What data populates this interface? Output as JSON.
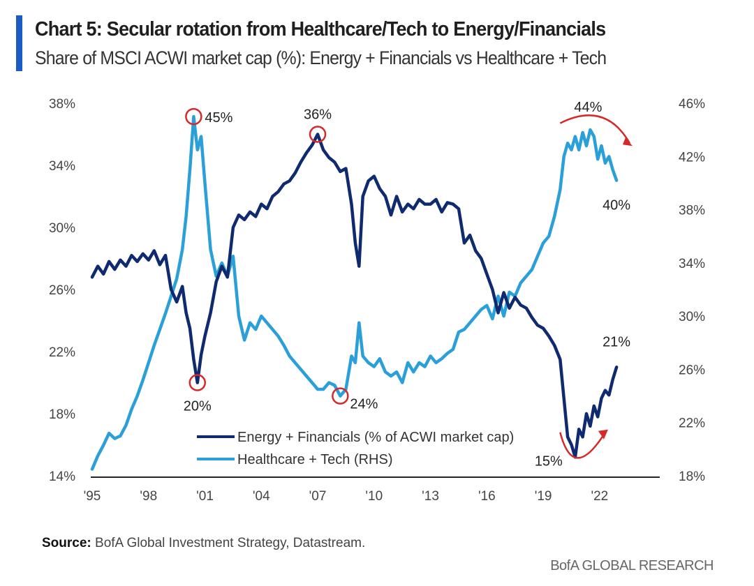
{
  "header": {
    "title": "Chart 5: Secular rotation from Healthcare/Tech to Energy/Financials",
    "subtitle": "Share of MSCI ACWI market cap (%): Energy + Financials vs Healthcare + Tech"
  },
  "footer": {
    "source_label": "Source:",
    "source_text": "BofA Global Investment Strategy, Datastream.",
    "brand": "BofA GLOBAL RESEARCH"
  },
  "colors": {
    "accent": "#1a5bc4",
    "energy_fin": "#0f2a6e",
    "health_tech": "#2a9fd8",
    "annotation": "#d42a2a",
    "axis": "#222222"
  },
  "chart_data": {
    "type": "line",
    "title": "Chart 5: Secular rotation from Healthcare/Tech to Energy/Financials",
    "subtitle": "Share of MSCI ACWI market cap (%): Energy + Financials vs Healthcare + Tech",
    "xlabel": "",
    "ylabel": "",
    "x_ticks": [
      "'95",
      "'98",
      "'01",
      "'04",
      "'07",
      "'10",
      "'13",
      "'16",
      "'19",
      "'22"
    ],
    "x_tick_values": [
      1995,
      1998,
      2001,
      2004,
      2007,
      2010,
      2013,
      2016,
      2019,
      2022
    ],
    "xlim": [
      1995,
      2025.2
    ],
    "y_left": {
      "ylim": [
        14,
        38
      ],
      "ticks": [
        "38%",
        "34%",
        "30%",
        "26%",
        "22%",
        "18%",
        "14%"
      ],
      "tick_values": [
        38,
        34,
        30,
        26,
        22,
        18,
        14
      ]
    },
    "y_right": {
      "ylim": [
        18,
        46
      ],
      "ticks": [
        "46%",
        "42%",
        "38%",
        "34%",
        "30%",
        "26%",
        "22%",
        "18%"
      ],
      "tick_values": [
        46,
        42,
        38,
        34,
        30,
        26,
        22,
        18
      ]
    },
    "grid": false,
    "legend": "bottom-center",
    "series": [
      {
        "name": "Energy + Financials (% of ACWI market cap)",
        "axis": "left",
        "x": [
          1995.0,
          1995.3,
          1995.6,
          1995.9,
          1996.2,
          1996.5,
          1996.8,
          1997.1,
          1997.4,
          1997.7,
          1998.0,
          1998.3,
          1998.6,
          1998.9,
          1999.2,
          1999.5,
          1999.8,
          2000.0,
          2000.2,
          2000.4,
          2000.6,
          2000.8,
          2001.0,
          2001.3,
          2001.6,
          2001.9,
          2002.2,
          2002.5,
          2002.8,
          2003.1,
          2003.4,
          2003.7,
          2004.0,
          2004.3,
          2004.6,
          2004.9,
          2005.2,
          2005.5,
          2005.8,
          2006.1,
          2006.4,
          2006.7,
          2007.0,
          2007.3,
          2007.6,
          2007.9,
          2008.2,
          2008.5,
          2008.8,
          2009.0,
          2009.2,
          2009.4,
          2009.7,
          2010.0,
          2010.3,
          2010.6,
          2010.9,
          2011.2,
          2011.5,
          2011.8,
          2012.1,
          2012.4,
          2012.7,
          2013.0,
          2013.3,
          2013.6,
          2013.9,
          2014.2,
          2014.5,
          2014.8,
          2015.1,
          2015.4,
          2015.7,
          2016.0,
          2016.3,
          2016.6,
          2016.9,
          2017.2,
          2017.5,
          2017.8,
          2018.1,
          2018.4,
          2018.7,
          2019.0,
          2019.3,
          2019.6,
          2019.9,
          2020.1,
          2020.3,
          2020.5,
          2020.7,
          2020.9,
          2021.1,
          2021.3,
          2021.5,
          2021.7,
          2021.9,
          2022.1,
          2022.3,
          2022.5,
          2022.7,
          2022.9
        ],
        "values": [
          26.8,
          27.5,
          27.0,
          27.8,
          27.3,
          27.9,
          27.5,
          28.2,
          27.8,
          28.3,
          27.9,
          28.5,
          27.6,
          28.2,
          26.0,
          25.2,
          26.2,
          24.5,
          23.5,
          21.5,
          20.0,
          21.8,
          23.0,
          24.5,
          26.5,
          27.5,
          26.8,
          30.0,
          30.8,
          30.5,
          31.0,
          30.7,
          31.5,
          31.2,
          32.0,
          32.3,
          32.8,
          33.0,
          33.5,
          34.2,
          34.8,
          35.3,
          36.0,
          35.0,
          34.5,
          34.2,
          33.6,
          33.8,
          31.5,
          29.0,
          27.5,
          32.0,
          33.0,
          33.3,
          32.5,
          32.0,
          30.8,
          32.0,
          31.0,
          31.5,
          31.2,
          31.8,
          31.5,
          31.5,
          31.8,
          31.0,
          31.6,
          31.5,
          31.2,
          29.0,
          29.5,
          28.5,
          28.0,
          27.0,
          26.0,
          24.5,
          25.8,
          24.8,
          25.5,
          25.0,
          24.8,
          24.2,
          23.7,
          23.5,
          23.0,
          22.4,
          21.5,
          19.0,
          16.5,
          16.0,
          15.2,
          17.0,
          16.5,
          18.0,
          17.2,
          18.5,
          17.8,
          19.0,
          19.5,
          19.2,
          20.2,
          21.0
        ]
      },
      {
        "name": "Healthcare + Tech (RHS)",
        "axis": "right",
        "x": [
          1995.0,
          1995.3,
          1995.6,
          1995.9,
          1996.2,
          1996.5,
          1996.8,
          1997.1,
          1997.4,
          1997.7,
          1998.0,
          1998.3,
          1998.6,
          1998.9,
          1999.2,
          1999.5,
          1999.8,
          2000.0,
          2000.2,
          2000.4,
          2000.6,
          2000.8,
          2001.0,
          2001.3,
          2001.6,
          2001.9,
          2002.2,
          2002.5,
          2002.8,
          2003.1,
          2003.4,
          2003.7,
          2004.0,
          2004.3,
          2004.6,
          2004.9,
          2005.2,
          2005.5,
          2005.8,
          2006.1,
          2006.4,
          2006.7,
          2007.0,
          2007.3,
          2007.6,
          2007.9,
          2008.2,
          2008.5,
          2008.8,
          2009.0,
          2009.2,
          2009.4,
          2009.7,
          2010.0,
          2010.3,
          2010.6,
          2010.9,
          2011.2,
          2011.5,
          2011.8,
          2012.1,
          2012.4,
          2012.7,
          2013.0,
          2013.3,
          2013.6,
          2013.9,
          2014.2,
          2014.5,
          2014.8,
          2015.1,
          2015.4,
          2015.7,
          2016.0,
          2016.3,
          2016.6,
          2016.9,
          2017.2,
          2017.5,
          2017.8,
          2018.1,
          2018.4,
          2018.7,
          2019.0,
          2019.3,
          2019.6,
          2019.9,
          2020.1,
          2020.3,
          2020.5,
          2020.7,
          2020.9,
          2021.1,
          2021.3,
          2021.5,
          2021.7,
          2021.9,
          2022.1,
          2022.3,
          2022.5,
          2022.7,
          2022.9
        ],
        "values": [
          18.5,
          19.5,
          20.3,
          21.2,
          20.8,
          21.0,
          21.8,
          23.0,
          24.0,
          25.2,
          26.5,
          27.8,
          29.0,
          30.2,
          31.5,
          32.8,
          35.0,
          37.5,
          41.0,
          45.0,
          42.5,
          43.5,
          40.0,
          35.0,
          33.0,
          34.0,
          33.0,
          34.5,
          30.0,
          28.2,
          29.5,
          29.0,
          30.0,
          29.5,
          29.0,
          28.5,
          27.8,
          27.0,
          26.5,
          26.0,
          25.5,
          25.0,
          24.5,
          24.5,
          25.0,
          24.8,
          24.0,
          24.5,
          27.0,
          26.5,
          29.5,
          27.0,
          26.5,
          26.2,
          26.8,
          25.8,
          25.5,
          25.8,
          25.0,
          26.5,
          25.8,
          26.5,
          26.2,
          27.0,
          26.5,
          26.8,
          27.2,
          27.5,
          28.8,
          29.0,
          29.5,
          30.0,
          30.5,
          30.8,
          29.8,
          31.5,
          30.0,
          31.8,
          31.5,
          32.5,
          33.0,
          33.5,
          34.5,
          35.5,
          36.0,
          37.5,
          39.5,
          42.0,
          43.0,
          42.5,
          43.5,
          42.5,
          43.8,
          42.8,
          44.0,
          43.5,
          41.8,
          42.8,
          41.5,
          42.0,
          41.0,
          40.2
        ]
      }
    ],
    "annotations": [
      {
        "label": "45%",
        "series": "Healthcare + Tech (RHS)",
        "x": 2000.4,
        "y": 45.0,
        "axis": "right",
        "circled": true
      },
      {
        "label": "20%",
        "series": "Energy + Financials (% of ACWI market cap)",
        "x": 2000.6,
        "y": 20.0,
        "axis": "left",
        "circled": true
      },
      {
        "label": "36%",
        "series": "Energy + Financials (% of ACWI market cap)",
        "x": 2007.0,
        "y": 36.0,
        "axis": "left",
        "circled": true
      },
      {
        "label": "24%",
        "series": "Healthcare + Tech (RHS)",
        "x": 2008.2,
        "y": 24.0,
        "axis": "right",
        "circled": true
      },
      {
        "label": "44%",
        "series": "Healthcare + Tech (RHS)",
        "x": 2021.5,
        "y": 44.0,
        "axis": "right",
        "circled": false,
        "arrow": "down-right"
      },
      {
        "label": "40%",
        "series": "Healthcare + Tech (RHS)",
        "x": 2022.9,
        "y": 40.2,
        "axis": "right",
        "circled": false
      },
      {
        "label": "21%",
        "series": "Energy + Financials (% of ACWI market cap)",
        "x": 2022.9,
        "y": 21.0,
        "axis": "left",
        "circled": false
      },
      {
        "label": "15%",
        "series": "Energy + Financials (% of ACWI market cap)",
        "x": 2020.7,
        "y": 15.2,
        "axis": "left",
        "circled": false,
        "arrow": "up-right"
      }
    ]
  }
}
